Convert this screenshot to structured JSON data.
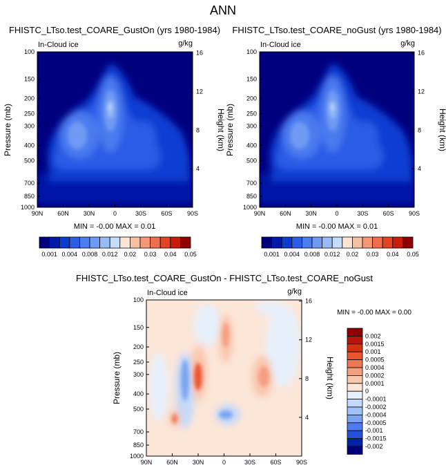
{
  "page": {
    "title": "ANN"
  },
  "levels_abs": [
    0.001,
    0.002,
    0.004,
    0.006,
    0.008,
    0.01,
    0.012,
    0.015,
    0.02,
    0.025,
    0.03,
    0.035,
    0.04,
    0.045,
    0.05
  ],
  "chart_data": [
    {
      "type": "heatmap",
      "title": "FHISTC_LTso.test_COARE_GustOn (yrs 1980-1984)",
      "field_label": "In-Cloud ice",
      "units": "g/kg",
      "ylabel": "Pressure (mb)",
      "ylabel_right": "Height (km)",
      "x_ticks": [
        "90N",
        "60N",
        "30N",
        "0",
        "30S",
        "60S",
        "90S"
      ],
      "y_ticks": [
        "100",
        "150",
        "200",
        "250",
        "300",
        "400",
        "500",
        "700",
        "850",
        "1000"
      ],
      "height_ticks": [
        "16",
        "12",
        "8",
        "4"
      ],
      "min_max": "MIN = -0.00  MAX =  0.01",
      "colorbar": {
        "labels": [
          "0.001",
          "0.004",
          "0.008",
          "0.012",
          "0.02",
          "0.03",
          "0.04",
          "0.05"
        ]
      }
    },
    {
      "type": "heatmap",
      "title": "FHISTC_LTso.test_COARE_noGust (yrs 1980-1984)",
      "field_label": "In-Cloud ice",
      "units": "g/kg",
      "ylabel": "Pressure (mb)",
      "ylabel_right": "Height (km)",
      "x_ticks": [
        "90N",
        "60N",
        "30N",
        "0",
        "30S",
        "60S",
        "90S"
      ],
      "y_ticks": [
        "100",
        "150",
        "200",
        "250",
        "300",
        "400",
        "500",
        "700",
        "850",
        "1000"
      ],
      "height_ticks": [
        "16",
        "12",
        "8",
        "4"
      ],
      "min_max": "MIN = -0.00  MAX =  0.01",
      "colorbar": {
        "labels": [
          "0.001",
          "0.004",
          "0.008",
          "0.012",
          "0.02",
          "0.03",
          "0.04",
          "0.05"
        ]
      }
    },
    {
      "type": "heatmap",
      "title": "FHISTC_LTso.test_COARE_GustOn - FHISTC_LTso.test_COARE_noGust",
      "field_label": "In-Cloud ice",
      "units": "g/kg",
      "ylabel": "Pressure (mb)",
      "ylabel_right": "Height (km)",
      "x_ticks": [
        "90N",
        "60N",
        "30N",
        "0",
        "30S",
        "60S",
        "90S"
      ],
      "y_ticks": [
        "100",
        "150",
        "200",
        "250",
        "300",
        "400",
        "500",
        "700",
        "850",
        "1000"
      ],
      "height_ticks": [
        "16",
        "12",
        "8",
        "4"
      ],
      "min_max": "MIN = -0.00  MAX =  0.00",
      "colorbar": {
        "labels": [
          "0.002",
          "0.0015",
          "0.001",
          "0.0005",
          "0.0004",
          "0.0002",
          "0.0001",
          "0",
          "-0.0001",
          "-0.0002",
          "-0.0004",
          "-0.0005",
          "-0.001",
          "-0.0015",
          "-0.002"
        ]
      }
    }
  ],
  "colors": {
    "abs_scale": [
      "#00007f",
      "#0019a8",
      "#0a3cd2",
      "#2a5ce6",
      "#4b7cef",
      "#6f9af4",
      "#98bbf8",
      "#c6dcfb",
      "#fbe6d6",
      "#f8c0a3",
      "#f49876",
      "#ef6e4d",
      "#e54324",
      "#c71c0d",
      "#8e0000"
    ],
    "diff_scale": [
      "#8e0000",
      "#b5150a",
      "#d6310f",
      "#ea5530",
      "#f07756",
      "#f59e80",
      "#f9c6ae",
      "#fce6d8",
      "#e6f0fb",
      "#c4d9f9",
      "#9fc0f6",
      "#7aa4f2",
      "#4f7bec",
      "#2450d8",
      "#0022a6",
      "#00007f"
    ],
    "background_fill": "#00007f"
  }
}
